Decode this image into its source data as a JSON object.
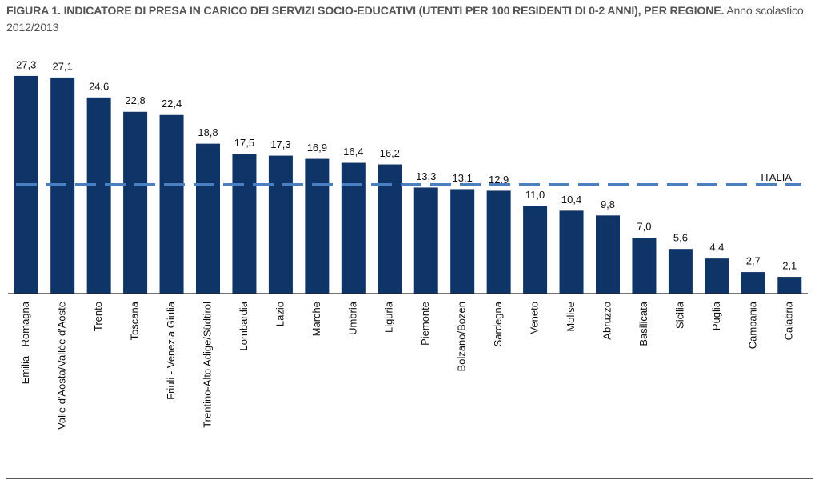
{
  "chart_data": {
    "type": "bar",
    "title": "FIGURA 1. INDICATORE DI PRESA IN CARICO DEI SERVIZI SOCIO-EDUCATIVI (UTENTI PER 100 RESIDENTI DI 0-2 ANNI), PER REGIONE.",
    "subtitle": "Anno scolastico 2012/2013",
    "categories": [
      "Emilia - Romagna",
      "Valle d'Aosta/Vallée d'Aoste",
      "Trento",
      "Toscana",
      "Friuli - Venezia Giulia",
      "Trentino-Alto Adige/Südtirol",
      "Lombardia",
      "Lazio",
      "Marche",
      "Umbria",
      "Liguria",
      "Piemonte",
      "Bolzano/Bozen",
      "Sardegna",
      "Veneto",
      "Molise",
      "Abruzzo",
      "Basilicata",
      "Sicilia",
      "Puglia",
      "Campania",
      "Calabria"
    ],
    "values": [
      27.3,
      27.1,
      24.6,
      22.8,
      22.4,
      18.8,
      17.5,
      17.3,
      16.9,
      16.4,
      16.2,
      13.3,
      13.1,
      12.9,
      11.0,
      10.4,
      9.8,
      7.0,
      5.6,
      4.4,
      2.7,
      2.1
    ],
    "value_labels": [
      "27,3",
      "27,1",
      "24,6",
      "22,8",
      "22,4",
      "18,8",
      "17,5",
      "17,3",
      "16,9",
      "16,4",
      "16,2",
      "13,3",
      "13,1",
      "12,9",
      "11,0",
      "10,4",
      "9,8",
      "7,0",
      "5,6",
      "4,4",
      "2,7",
      "2,1"
    ],
    "color": "#0f3568",
    "ylim": [
      0,
      30
    ],
    "reference_line": {
      "label": "ITALIA",
      "value": 13.7,
      "color": "#4a7fc1"
    }
  }
}
